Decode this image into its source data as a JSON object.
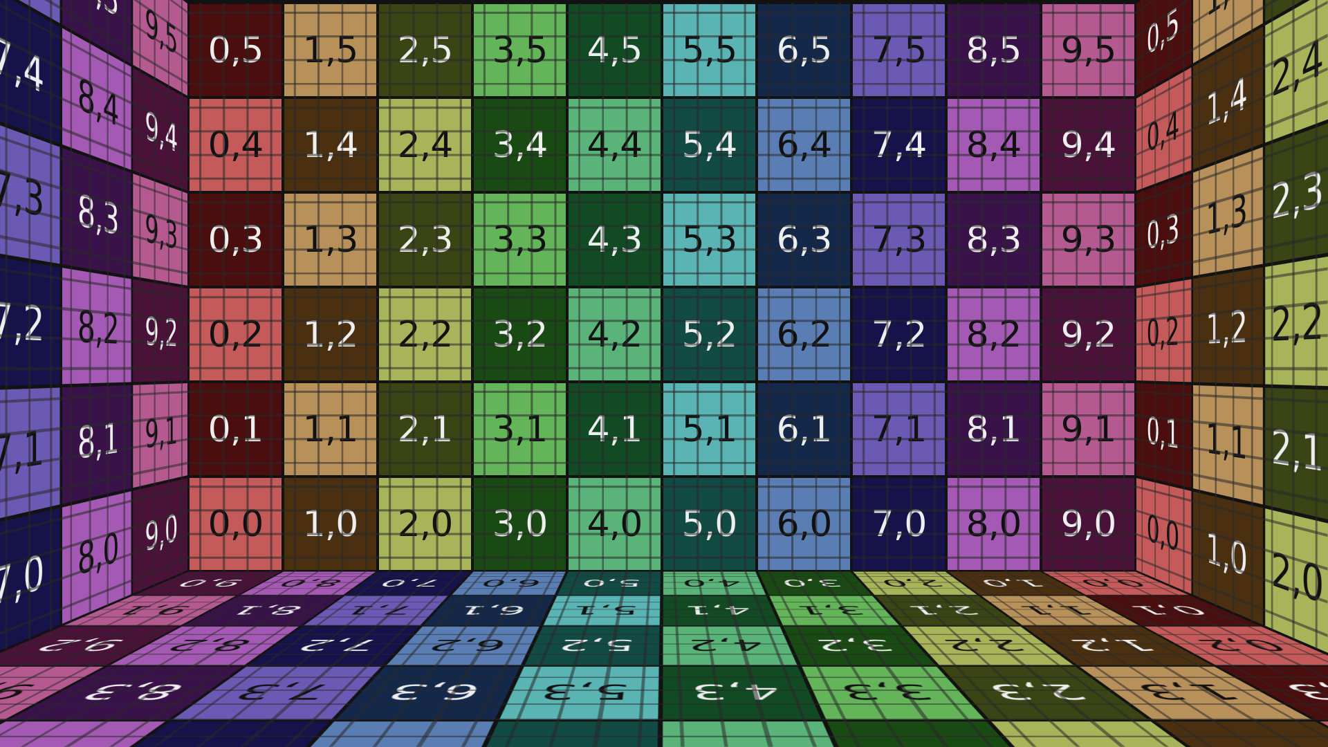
{
  "texture": {
    "columns": [
      {
        "light": "#c45a5a",
        "dark": "#4a0e0e"
      },
      {
        "light": "#b8905a",
        "dark": "#4a3010"
      },
      {
        "light": "#a8b45a",
        "dark": "#3a4414"
      },
      {
        "light": "#64b45a",
        "dark": "#1a4a14"
      },
      {
        "light": "#5ab47a",
        "dark": "#124a24"
      },
      {
        "light": "#5ab4b4",
        "dark": "#124a44"
      },
      {
        "light": "#5a7eb4",
        "dark": "#14284a"
      },
      {
        "light": "#6a5ab4",
        "dark": "#16124a"
      },
      {
        "light": "#a45ab4",
        "dark": "#3a124a"
      },
      {
        "light": "#b45a90",
        "dark": "#4a1238"
      }
    ],
    "text_on_light": "#111111",
    "text_on_dark": "#eeeeee",
    "cell_labels": [
      [
        "0,0",
        "1,0",
        "2,0",
        "3,0",
        "4,0",
        "5,0",
        "6,0",
        "7,0",
        "8,0",
        "9,0"
      ],
      [
        "0,1",
        "1,1",
        "2,1",
        "3,1",
        "4,1",
        "5,1",
        "6,1",
        "7,1",
        "8,1",
        "9,1"
      ],
      [
        "0,2",
        "1,2",
        "2,2",
        "3,2",
        "4,2",
        "5,2",
        "6,2",
        "7,2",
        "8,2",
        "9,2"
      ],
      [
        "0,3",
        "1,3",
        "2,3",
        "3,3",
        "4,3",
        "5,3",
        "6,3",
        "7,3",
        "8,3",
        "9,3"
      ],
      [
        "0,4",
        "1,4",
        "2,4",
        "3,4",
        "4,4",
        "5,4",
        "6,4",
        "7,4",
        "8,4",
        "9,4"
      ],
      [
        "0,5",
        "1,5",
        "2,5",
        "3,5",
        "4,5",
        "5,5",
        "6,5",
        "7,5",
        "8,5",
        "9,5"
      ]
    ]
  }
}
